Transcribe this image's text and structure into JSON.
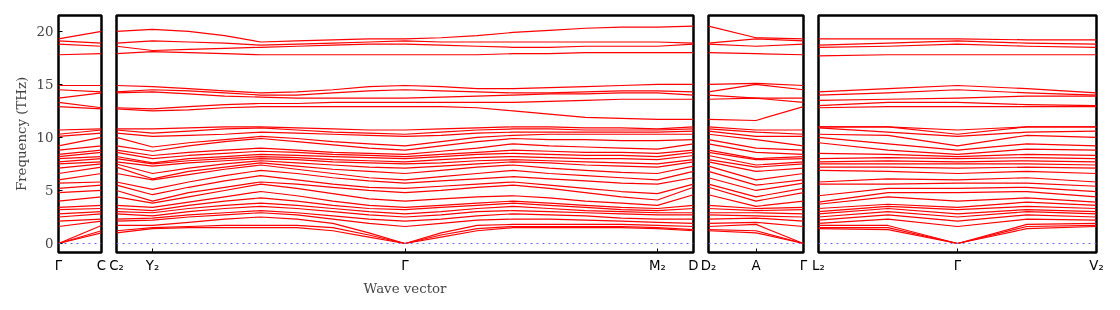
{
  "chart_data": [
    {
      "type": "line",
      "ylabel": "Frequency (THz)",
      "categories": [
        "Γ",
        "C"
      ],
      "ylim": [
        -0.85,
        21.5
      ],
      "yticks": [
        0,
        5,
        10,
        15,
        20
      ],
      "line_style": "solid",
      "ref_lines": [
        {
          "axis": "y",
          "value": 0,
          "label": null,
          "color": "#6666ff",
          "line_style": "dotted"
        }
      ],
      "series": [
        {
          "color": "#ff0000",
          "values": [
            0,
            1.0
          ]
        },
        {
          "color": "#ff0000",
          "values": [
            0,
            1.2
          ]
        },
        {
          "color": "#ff0000",
          "values": [
            0,
            1.7
          ]
        },
        {
          "color": "#ff0000",
          "values": [
            1.6,
            2.1
          ]
        },
        {
          "color": "#ff0000",
          "values": [
            2.1,
            2.3
          ]
        },
        {
          "color": "#ff0000",
          "values": [
            2.5,
            2.8
          ]
        },
        {
          "color": "#ff0000",
          "values": [
            2.8,
            3.0
          ]
        },
        {
          "color": "#ff0000",
          "values": [
            3.2,
            3.3
          ]
        },
        {
          "color": "#ff0000",
          "values": [
            3.4,
            3.6
          ]
        },
        {
          "color": "#ff0000",
          "values": [
            4.0,
            4.4
          ]
        },
        {
          "color": "#ff0000",
          "values": [
            4.8,
            5.0
          ]
        },
        {
          "color": "#ff0000",
          "values": [
            5.2,
            5.5
          ]
        },
        {
          "color": "#ff0000",
          "values": [
            5.7,
            5.8
          ]
        },
        {
          "color": "#ff0000",
          "values": [
            6.0,
            6.6
          ]
        },
        {
          "color": "#ff0000",
          "values": [
            6.6,
            7.2
          ]
        },
        {
          "color": "#ff0000",
          "values": [
            7.1,
            7.5
          ]
        },
        {
          "color": "#ff0000",
          "values": [
            7.5,
            7.7
          ]
        },
        {
          "color": "#ff0000",
          "values": [
            7.7,
            8.0
          ]
        },
        {
          "color": "#ff0000",
          "values": [
            8.0,
            8.2
          ]
        },
        {
          "color": "#ff0000",
          "values": [
            8.2,
            8.6
          ]
        },
        {
          "color": "#ff0000",
          "values": [
            8.4,
            8.8
          ]
        },
        {
          "color": "#ff0000",
          "values": [
            8.8,
            9.2
          ]
        },
        {
          "color": "#ff0000",
          "values": [
            9.2,
            10.0
          ]
        },
        {
          "color": "#ff0000",
          "values": [
            10.1,
            10.4
          ]
        },
        {
          "color": "#ff0000",
          "values": [
            10.3,
            10.7
          ]
        },
        {
          "color": "#ff0000",
          "values": [
            10.7,
            10.8
          ]
        },
        {
          "color": "#ff0000",
          "values": [
            12.9,
            12.7
          ]
        },
        {
          "color": "#ff0000",
          "values": [
            13.3,
            12.8
          ]
        },
        {
          "color": "#ff0000",
          "values": [
            13.7,
            14.2
          ]
        },
        {
          "color": "#ff0000",
          "values": [
            14.5,
            14.3
          ]
        },
        {
          "color": "#ff0000",
          "values": [
            14.9,
            14.9
          ]
        },
        {
          "color": "#ff0000",
          "values": [
            17.8,
            17.9
          ]
        },
        {
          "color": "#ff0000",
          "values": [
            18.8,
            18.6
          ]
        },
        {
          "color": "#ff0000",
          "values": [
            19.1,
            18.9
          ]
        },
        {
          "color": "#ff0000",
          "values": [
            19.3,
            20.0
          ]
        }
      ]
    },
    {
      "type": "line",
      "xlabel": "Wave vector",
      "categories": [
        "C₂",
        "Y₂",
        null,
        null,
        null,
        null,
        null,
        null,
        "Γ",
        null,
        null,
        null,
        null,
        null,
        null,
        "M₂",
        "D"
      ],
      "ylim": [
        -0.85,
        21.5
      ],
      "yticks": [
        0,
        5,
        10,
        15,
        20
      ],
      "tick_labels": "x",
      "line_style": "solid",
      "ref_lines": [
        {
          "axis": "y",
          "value": 0,
          "label": null,
          "color": "#6666ff",
          "line_style": "dotted"
        }
      ],
      "series": [
        {
          "color": "#ff0000",
          "values": [
            1.0,
            1.4,
            1.5,
            1.5,
            1.5,
            1.5,
            1.2,
            0.6,
            0,
            0.6,
            1.2,
            1.5,
            1.5,
            1.5,
            1.5,
            1.4,
            1.2
          ]
        },
        {
          "color": "#ff0000",
          "values": [
            1.2,
            1.5,
            1.6,
            1.7,
            1.7,
            1.7,
            1.5,
            0.8,
            0,
            0.8,
            1.4,
            1.6,
            1.6,
            1.6,
            1.6,
            1.5,
            1.3
          ]
        },
        {
          "color": "#ff0000",
          "values": [
            1.7,
            1.7,
            2.0,
            2.3,
            2.5,
            2.3,
            1.9,
            1.0,
            0,
            1.0,
            1.7,
            1.8,
            1.8,
            1.8,
            1.8,
            1.7,
            1.6
          ]
        },
        {
          "color": "#ff0000",
          "values": [
            2.1,
            2.2,
            2.5,
            2.7,
            2.9,
            2.7,
            2.3,
            1.9,
            1.6,
            1.9,
            2.2,
            2.3,
            2.3,
            2.2,
            2.1,
            2.0,
            1.9
          ]
        },
        {
          "color": "#ff0000",
          "values": [
            2.3,
            2.4,
            2.7,
            2.9,
            3.1,
            2.9,
            2.6,
            2.3,
            2.1,
            2.3,
            2.6,
            2.8,
            2.7,
            2.6,
            2.4,
            2.3,
            2.3
          ]
        },
        {
          "color": "#ff0000",
          "values": [
            2.8,
            2.6,
            3.0,
            3.3,
            3.5,
            3.3,
            3.0,
            2.7,
            2.5,
            2.7,
            3.0,
            3.1,
            3.0,
            2.9,
            2.8,
            2.7,
            2.7
          ]
        },
        {
          "color": "#ff0000",
          "values": [
            3.0,
            2.9,
            3.3,
            3.6,
            3.8,
            3.6,
            3.3,
            3.0,
            2.8,
            3.0,
            3.3,
            3.5,
            3.3,
            3.1,
            3.0,
            2.9,
            2.9
          ]
        },
        {
          "color": "#ff0000",
          "values": [
            3.3,
            3.1,
            3.6,
            4.0,
            4.3,
            4.0,
            3.6,
            3.3,
            3.2,
            3.4,
            3.6,
            3.8,
            3.6,
            3.4,
            3.2,
            3.1,
            3.3
          ]
        },
        {
          "color": "#ff0000",
          "values": [
            3.6,
            3.4,
            3.9,
            4.4,
            4.9,
            4.5,
            4.0,
            3.6,
            3.4,
            3.6,
            3.8,
            4.0,
            3.8,
            3.6,
            3.4,
            3.3,
            3.6
          ]
        },
        {
          "color": "#ff0000",
          "values": [
            4.4,
            3.8,
            4.4,
            5.0,
            5.6,
            5.2,
            4.7,
            4.2,
            4.0,
            4.2,
            4.4,
            4.5,
            4.3,
            4.0,
            3.8,
            3.6,
            4.6
          ]
        },
        {
          "color": "#ff0000",
          "values": [
            5.0,
            4.0,
            4.8,
            5.3,
            5.8,
            5.6,
            5.3,
            5.0,
            4.8,
            5.0,
            5.3,
            5.5,
            5.2,
            4.8,
            4.4,
            4.1,
            5.3
          ]
        },
        {
          "color": "#ff0000",
          "values": [
            5.5,
            4.6,
            5.3,
            5.9,
            6.4,
            6.0,
            5.6,
            5.3,
            5.2,
            5.4,
            5.6,
            5.8,
            5.5,
            5.2,
            4.9,
            4.7,
            5.6
          ]
        },
        {
          "color": "#ff0000",
          "values": [
            5.8,
            5.1,
            5.8,
            6.4,
            6.9,
            6.6,
            6.2,
            5.9,
            5.7,
            5.9,
            6.1,
            6.3,
            6.1,
            5.9,
            5.7,
            5.6,
            6.2
          ]
        },
        {
          "color": "#ff0000",
          "values": [
            6.6,
            6.0,
            6.5,
            7.0,
            7.4,
            7.0,
            6.6,
            6.2,
            6.0,
            6.3,
            6.6,
            6.9,
            6.6,
            6.4,
            6.2,
            6.0,
            6.8
          ]
        },
        {
          "color": "#ff0000",
          "values": [
            7.2,
            6.1,
            6.8,
            7.2,
            7.6,
            7.3,
            7.0,
            6.8,
            6.6,
            6.9,
            7.2,
            7.4,
            7.1,
            6.9,
            6.7,
            6.6,
            7.3
          ]
        },
        {
          "color": "#ff0000",
          "values": [
            7.5,
            6.6,
            7.1,
            7.5,
            7.8,
            7.6,
            7.4,
            7.2,
            7.1,
            7.3,
            7.5,
            7.7,
            7.6,
            7.4,
            7.3,
            7.2,
            7.7
          ]
        },
        {
          "color": "#ff0000",
          "values": [
            7.7,
            7.3,
            7.6,
            7.8,
            8.0,
            7.9,
            7.7,
            7.6,
            7.5,
            7.6,
            7.8,
            7.9,
            7.8,
            7.7,
            7.6,
            7.5,
            7.9
          ]
        },
        {
          "color": "#ff0000",
          "values": [
            8.0,
            7.5,
            7.8,
            8.0,
            8.2,
            8.1,
            7.9,
            7.8,
            7.7,
            7.9,
            8.1,
            8.2,
            8.1,
            8.0,
            8.0,
            7.9,
            8.3
          ]
        },
        {
          "color": "#ff0000",
          "values": [
            8.2,
            7.6,
            8.0,
            8.2,
            8.4,
            8.3,
            8.2,
            8.1,
            8.0,
            8.2,
            8.4,
            8.5,
            8.4,
            8.3,
            8.3,
            8.2,
            8.6
          ]
        },
        {
          "color": "#ff0000",
          "values": [
            8.6,
            8.0,
            8.3,
            8.5,
            8.7,
            8.6,
            8.4,
            8.3,
            8.2,
            8.4,
            8.6,
            8.8,
            8.7,
            8.6,
            8.6,
            8.5,
            8.8
          ]
        },
        {
          "color": "#ff0000",
          "values": [
            8.8,
            8.3,
            8.6,
            8.8,
            9.0,
            8.8,
            8.6,
            8.5,
            8.4,
            8.7,
            9.0,
            9.4,
            9.2,
            9.1,
            9.0,
            8.9,
            9.4
          ]
        },
        {
          "color": "#ff0000",
          "values": [
            9.2,
            8.7,
            9.2,
            9.6,
            9.9,
            9.6,
            9.3,
            9.0,
            8.8,
            9.2,
            9.6,
            9.9,
            9.8,
            9.8,
            9.7,
            9.7,
            9.8
          ]
        },
        {
          "color": "#ff0000",
          "values": [
            10.0,
            9.1,
            9.5,
            9.8,
            10.1,
            9.9,
            9.6,
            9.4,
            9.2,
            9.6,
            10.0,
            10.2,
            10.3,
            10.3,
            10.3,
            10.3,
            10.3
          ]
        },
        {
          "color": "#ff0000",
          "values": [
            10.4,
            10.1,
            10.2,
            10.3,
            10.5,
            10.4,
            10.3,
            10.2,
            10.1,
            10.2,
            10.4,
            10.5,
            10.5,
            10.5,
            10.5,
            10.5,
            10.6
          ]
        },
        {
          "color": "#ff0000",
          "values": [
            10.7,
            10.4,
            10.6,
            10.8,
            10.9,
            10.7,
            10.5,
            10.4,
            10.3,
            10.5,
            10.7,
            10.8,
            10.8,
            10.7,
            10.7,
            10.7,
            10.8
          ]
        },
        {
          "color": "#ff0000",
          "values": [
            10.8,
            10.8,
            10.9,
            11.0,
            11.0,
            10.9,
            10.8,
            10.7,
            10.7,
            10.8,
            10.9,
            11.0,
            11.0,
            10.9,
            10.9,
            10.8,
            11.0
          ]
        },
        {
          "color": "#ff0000",
          "values": [
            12.7,
            12.5,
            12.6,
            12.8,
            12.9,
            12.9,
            12.9,
            12.9,
            12.9,
            12.9,
            12.8,
            12.5,
            12.2,
            11.9,
            11.8,
            11.7,
            11.7
          ]
        },
        {
          "color": "#ff0000",
          "values": [
            12.8,
            12.7,
            12.9,
            13.1,
            13.2,
            13.2,
            13.3,
            13.3,
            13.3,
            13.3,
            13.3,
            13.3,
            13.4,
            13.5,
            13.6,
            13.6,
            13.6
          ]
        },
        {
          "color": "#ff0000",
          "values": [
            14.2,
            14.3,
            14.1,
            13.9,
            13.8,
            13.7,
            13.7,
            13.7,
            13.7,
            13.8,
            13.9,
            14.0,
            14.1,
            14.1,
            14.2,
            14.2,
            14.0
          ]
        },
        {
          "color": "#ff0000",
          "values": [
            14.3,
            14.5,
            14.4,
            14.2,
            14.0,
            14.0,
            14.2,
            14.4,
            14.5,
            14.4,
            14.3,
            14.2,
            14.2,
            14.3,
            14.4,
            14.4,
            14.3
          ]
        },
        {
          "color": "#ff0000",
          "values": [
            14.9,
            14.8,
            14.6,
            14.4,
            14.2,
            14.3,
            14.5,
            14.8,
            14.9,
            14.8,
            14.6,
            14.6,
            14.7,
            14.8,
            14.9,
            15.0,
            15.0
          ]
        },
        {
          "color": "#ff0000",
          "values": [
            17.9,
            18.1,
            18.0,
            17.9,
            17.8,
            17.8,
            17.8,
            17.8,
            17.8,
            17.8,
            17.8,
            17.9,
            17.9,
            18.0,
            18.0,
            18.0,
            18.0
          ]
        },
        {
          "color": "#ff0000",
          "values": [
            18.6,
            18.2,
            18.3,
            18.4,
            18.5,
            18.6,
            18.7,
            18.8,
            18.8,
            18.7,
            18.6,
            18.5,
            18.5,
            18.6,
            18.6,
            18.6,
            18.8
          ]
        },
        {
          "color": "#ff0000",
          "values": [
            18.9,
            19.1,
            19.0,
            18.9,
            18.7,
            18.8,
            18.9,
            19.0,
            19.1,
            19.0,
            19.0,
            19.0,
            19.0,
            19.0,
            19.0,
            19.0,
            18.9
          ]
        },
        {
          "color": "#ff0000",
          "values": [
            20.0,
            20.2,
            20.0,
            19.6,
            19.0,
            19.1,
            19.2,
            19.3,
            19.3,
            19.4,
            19.6,
            19.9,
            20.1,
            20.3,
            20.4,
            20.4,
            20.5
          ]
        }
      ]
    },
    {
      "type": "line",
      "categories": [
        "D₂",
        "A",
        "Γ"
      ],
      "ylim": [
        -0.85,
        21.5
      ],
      "yticks": [
        0,
        5,
        10,
        15,
        20
      ],
      "tick_labels": "x",
      "line_style": "solid",
      "ref_lines": [
        {
          "axis": "y",
          "value": 0,
          "label": null,
          "color": "#6666ff",
          "line_style": "dotted"
        }
      ],
      "series": [
        {
          "color": "#ff0000",
          "values": [
            1.2,
            1.0,
            0
          ]
        },
        {
          "color": "#ff0000",
          "values": [
            1.3,
            1.2,
            0
          ]
        },
        {
          "color": "#ff0000",
          "values": [
            1.6,
            1.8,
            0
          ]
        },
        {
          "color": "#ff0000",
          "values": [
            1.9,
            2.0,
            1.6
          ]
        },
        {
          "color": "#ff0000",
          "values": [
            2.3,
            2.4,
            2.1
          ]
        },
        {
          "color": "#ff0000",
          "values": [
            2.7,
            2.6,
            2.5
          ]
        },
        {
          "color": "#ff0000",
          "values": [
            2.9,
            2.9,
            2.8
          ]
        },
        {
          "color": "#ff0000",
          "values": [
            3.3,
            3.1,
            3.2
          ]
        },
        {
          "color": "#ff0000",
          "values": [
            3.6,
            3.3,
            3.4
          ]
        },
        {
          "color": "#ff0000",
          "values": [
            4.6,
            3.5,
            4.0
          ]
        },
        {
          "color": "#ff0000",
          "values": [
            5.3,
            4.0,
            4.8
          ]
        },
        {
          "color": "#ff0000",
          "values": [
            5.6,
            4.4,
            5.2
          ]
        },
        {
          "color": "#ff0000",
          "values": [
            6.2,
            5.0,
            5.7
          ]
        },
        {
          "color": "#ff0000",
          "values": [
            6.8,
            5.5,
            6.0
          ]
        },
        {
          "color": "#ff0000",
          "values": [
            7.3,
            6.0,
            6.6
          ]
        },
        {
          "color": "#ff0000",
          "values": [
            7.7,
            6.8,
            7.1
          ]
        },
        {
          "color": "#ff0000",
          "values": [
            7.9,
            7.2,
            7.5
          ]
        },
        {
          "color": "#ff0000",
          "values": [
            8.3,
            7.4,
            7.7
          ]
        },
        {
          "color": "#ff0000",
          "values": [
            8.6,
            7.9,
            8.0
          ]
        },
        {
          "color": "#ff0000",
          "values": [
            8.8,
            8.0,
            8.2
          ]
        },
        {
          "color": "#ff0000",
          "values": [
            9.4,
            8.6,
            8.4
          ]
        },
        {
          "color": "#ff0000",
          "values": [
            9.8,
            9.0,
            8.8
          ]
        },
        {
          "color": "#ff0000",
          "values": [
            10.3,
            9.8,
            9.2
          ]
        },
        {
          "color": "#ff0000",
          "values": [
            10.6,
            10.1,
            10.1
          ]
        },
        {
          "color": "#ff0000",
          "values": [
            10.8,
            10.5,
            10.3
          ]
        },
        {
          "color": "#ff0000",
          "values": [
            11.0,
            10.7,
            10.7
          ]
        },
        {
          "color": "#ff0000",
          "values": [
            11.7,
            11.6,
            12.9
          ]
        },
        {
          "color": "#ff0000",
          "values": [
            13.6,
            13.7,
            13.3
          ]
        },
        {
          "color": "#ff0000",
          "values": [
            14.0,
            13.7,
            13.7
          ]
        },
        {
          "color": "#ff0000",
          "values": [
            14.3,
            15.0,
            14.5
          ]
        },
        {
          "color": "#ff0000",
          "values": [
            15.0,
            15.1,
            14.9
          ]
        },
        {
          "color": "#ff0000",
          "values": [
            18.0,
            17.9,
            17.8
          ]
        },
        {
          "color": "#ff0000",
          "values": [
            18.8,
            18.6,
            18.8
          ]
        },
        {
          "color": "#ff0000",
          "values": [
            18.9,
            19.3,
            19.1
          ]
        },
        {
          "color": "#ff0000",
          "values": [
            20.5,
            19.4,
            19.3
          ]
        }
      ]
    },
    {
      "type": "line",
      "categories": [
        "L₂",
        null,
        "Γ",
        null,
        "V₂"
      ],
      "ylim": [
        -0.85,
        21.5
      ],
      "yticks": [
        0,
        5,
        10,
        15,
        20
      ],
      "tick_labels": "x",
      "line_style": "solid",
      "ref_lines": [
        {
          "axis": "y",
          "value": 0,
          "label": null,
          "color": "#6666ff",
          "line_style": "dotted"
        }
      ],
      "series": [
        {
          "color": "#ff0000",
          "values": [
            1.4,
            1.3,
            0,
            1.4,
            1.6
          ]
        },
        {
          "color": "#ff0000",
          "values": [
            1.5,
            1.5,
            0,
            1.6,
            1.7
          ]
        },
        {
          "color": "#ff0000",
          "values": [
            1.7,
            1.7,
            0,
            1.8,
            1.9
          ]
        },
        {
          "color": "#ff0000",
          "values": [
            1.9,
            2.3,
            1.6,
            2.3,
            2.2
          ]
        },
        {
          "color": "#ff0000",
          "values": [
            2.2,
            2.7,
            2.1,
            2.7,
            2.5
          ]
        },
        {
          "color": "#ff0000",
          "values": [
            2.5,
            3.0,
            2.5,
            3.0,
            2.8
          ]
        },
        {
          "color": "#ff0000",
          "values": [
            2.8,
            3.3,
            2.8,
            3.2,
            3.0
          ]
        },
        {
          "color": "#ff0000",
          "values": [
            3.0,
            3.5,
            3.2,
            3.5,
            3.3
          ]
        },
        {
          "color": "#ff0000",
          "values": [
            3.3,
            3.7,
            3.4,
            3.9,
            3.6
          ]
        },
        {
          "color": "#ff0000",
          "values": [
            3.7,
            4.4,
            4.0,
            4.3,
            3.9
          ]
        },
        {
          "color": "#ff0000",
          "values": [
            3.9,
            4.8,
            4.8,
            4.9,
            4.4
          ]
        },
        {
          "color": "#ff0000",
          "values": [
            4.5,
            5.2,
            5.2,
            5.3,
            4.9
          ]
        },
        {
          "color": "#ff0000",
          "values": [
            5.6,
            5.6,
            5.7,
            5.7,
            5.4
          ]
        },
        {
          "color": "#ff0000",
          "values": [
            5.8,
            6.1,
            6.0,
            6.2,
            5.8
          ]
        },
        {
          "color": "#ff0000",
          "values": [
            6.9,
            6.8,
            6.6,
            6.8,
            6.6
          ]
        },
        {
          "color": "#ff0000",
          "values": [
            7.2,
            7.2,
            7.1,
            7.2,
            7.1
          ]
        },
        {
          "color": "#ff0000",
          "values": [
            7.5,
            7.5,
            7.5,
            7.5,
            7.4
          ]
        },
        {
          "color": "#ff0000",
          "values": [
            7.7,
            7.8,
            7.7,
            7.8,
            7.7
          ]
        },
        {
          "color": "#ff0000",
          "values": [
            8.0,
            8.1,
            8.0,
            8.1,
            8.0
          ]
        },
        {
          "color": "#ff0000",
          "values": [
            8.5,
            8.4,
            8.2,
            8.4,
            8.3
          ]
        },
        {
          "color": "#ff0000",
          "values": [
            9.5,
            8.8,
            8.4,
            8.9,
            8.8
          ]
        },
        {
          "color": "#ff0000",
          "values": [
            10.0,
            9.4,
            8.8,
            9.4,
            9.2
          ]
        },
        {
          "color": "#ff0000",
          "values": [
            10.3,
            10.2,
            9.2,
            10.2,
            10.0
          ]
        },
        {
          "color": "#ff0000",
          "values": [
            10.9,
            10.5,
            10.1,
            10.5,
            10.6
          ]
        },
        {
          "color": "#ff0000",
          "values": [
            11.0,
            11.0,
            10.3,
            11.0,
            11.0
          ]
        },
        {
          "color": "#ff0000",
          "values": [
            11.0,
            11.0,
            10.7,
            11.0,
            11.0
          ]
        },
        {
          "color": "#ff0000",
          "values": [
            12.8,
            12.9,
            12.9,
            12.9,
            12.9
          ]
        },
        {
          "color": "#ff0000",
          "values": [
            13.0,
            13.3,
            13.3,
            13.1,
            13.0
          ]
        },
        {
          "color": "#ff0000",
          "values": [
            13.5,
            13.6,
            13.7,
            13.9,
            13.9
          ]
        },
        {
          "color": "#ff0000",
          "values": [
            14.0,
            14.2,
            14.5,
            14.2,
            14.0
          ]
        },
        {
          "color": "#ff0000",
          "values": [
            14.3,
            14.6,
            14.9,
            14.6,
            14.2
          ]
        },
        {
          "color": "#ff0000",
          "values": [
            17.7,
            17.8,
            17.8,
            17.8,
            17.8
          ]
        },
        {
          "color": "#ff0000",
          "values": [
            18.5,
            18.6,
            18.8,
            18.6,
            18.5
          ]
        },
        {
          "color": "#ff0000",
          "values": [
            18.7,
            18.9,
            19.1,
            18.9,
            18.8
          ]
        },
        {
          "color": "#ff0000",
          "values": [
            19.3,
            19.3,
            19.3,
            19.2,
            19.2
          ]
        }
      ]
    }
  ]
}
